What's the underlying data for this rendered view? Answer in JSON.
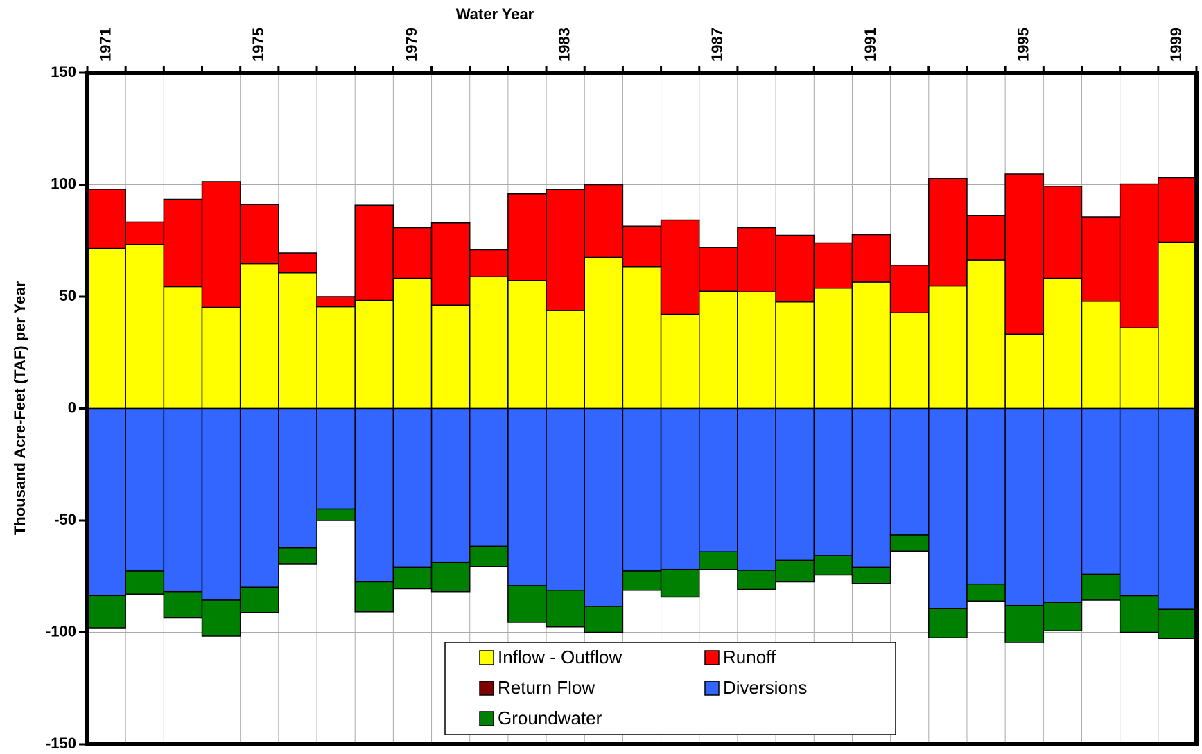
{
  "chart_data": {
    "type": "bar",
    "stacked": true,
    "title": "Water Year",
    "y_label": "Thousand Acre-Feet (TAF) per Year",
    "categories": [
      "1971",
      null,
      null,
      null,
      "1975",
      null,
      null,
      null,
      "1979",
      null,
      null,
      null,
      "1983",
      null,
      null,
      null,
      "1987",
      null,
      null,
      null,
      "1991",
      null,
      null,
      null,
      "1995",
      null,
      null,
      null,
      "1999"
    ],
    "series": [
      {
        "name": "Inflow - Outflow",
        "color": "#ffff00",
        "values": [
          71.5,
          73.3,
          54.5,
          45.2,
          64.7,
          60.6,
          45.5,
          48.3,
          58.2,
          46.2,
          58.9,
          57.2,
          43.8,
          67.5,
          63.4,
          42.1,
          52.4,
          52.1,
          47.6,
          53.8,
          56.5,
          42.8,
          54.8,
          66.4,
          33.2,
          58.2,
          47.9,
          36,
          74.3
        ]
      },
      {
        "name": "Runoff",
        "color": "#ff0000",
        "values": [
          26.5,
          10,
          39,
          56.2,
          26.4,
          8.9,
          4.5,
          42.5,
          22.6,
          36.7,
          12,
          38.7,
          54.1,
          32.5,
          18.1,
          42.1,
          19.5,
          28.7,
          29.8,
          20.2,
          21.2,
          21.2,
          47.9,
          19.9,
          71.6,
          41.1,
          37.7,
          64.3,
          28.8
        ]
      },
      {
        "name": "Return Flow",
        "color": "#800000",
        "values": [
          0,
          0,
          0,
          0,
          0,
          0,
          0,
          0,
          0,
          0,
          0,
          0,
          0,
          0,
          0,
          0,
          0,
          0,
          0,
          0,
          0,
          0,
          0,
          0,
          0,
          0,
          0,
          0,
          0
        ]
      },
      {
        "name": "Diversions",
        "color": "#3366ff",
        "values": [
          -83.5,
          -72.6,
          -81.8,
          -85.6,
          -79.8,
          -62.3,
          -44.9,
          -77.4,
          -70.9,
          -68.8,
          -61.6,
          -79.1,
          -81.2,
          -88.4,
          -72.6,
          -71.9,
          -64,
          -72.3,
          -67.8,
          -65.8,
          -70.9,
          -56.5,
          -89.4,
          -78.4,
          -88,
          -86.6,
          -74,
          -83.6,
          -89.7
        ]
      },
      {
        "name": "Groundwater",
        "color": "#008000",
        "values": [
          -14.5,
          -10.3,
          -11.7,
          -16.1,
          -11.3,
          -7.2,
          -5.1,
          -13.4,
          -9.6,
          -13,
          -8.9,
          -16.4,
          -16.4,
          -11.6,
          -8.6,
          -12.3,
          -7.9,
          -8.5,
          -9.6,
          -8.5,
          -7.2,
          -7.2,
          -13,
          -7.6,
          -16.5,
          -12.7,
          -11.6,
          -16.4,
          -13
        ]
      }
    ],
    "ylim": [
      -150,
      150
    ],
    "yticks": [
      -150,
      -100,
      -50,
      0,
      50,
      100,
      150
    ],
    "grid": true,
    "legend": "bottom"
  }
}
